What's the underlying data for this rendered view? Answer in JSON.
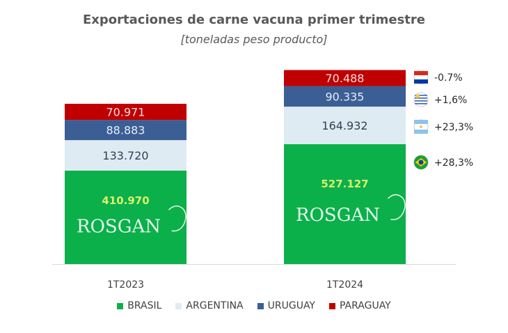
{
  "chart_data": {
    "type": "bar",
    "stacked": true,
    "title": "Exportaciones de carne vacuna primer trimestre",
    "subtitle": "[toneladas peso producto]",
    "categories": [
      "1T2023",
      "1T2024"
    ],
    "series": [
      {
        "name": "BRASIL",
        "color": "#0bb04b",
        "label_color": "#d9f26b",
        "values": [
          410970,
          527127
        ],
        "labels": [
          "410.970",
          "527.127"
        ],
        "change": "+28,3%",
        "flag": "brazil-flag-icon"
      },
      {
        "name": "ARGENTINA",
        "color": "#deebf3",
        "label_color": "#333f50",
        "values": [
          133720,
          164932
        ],
        "labels": [
          "133.720",
          "164.932"
        ],
        "change": "+23,3%",
        "flag": "argentina-flag-icon"
      },
      {
        "name": "URUGUAY",
        "color": "#3b5e95",
        "label_color": "#e6eef7",
        "values": [
          88883,
          90335
        ],
        "labels": [
          "88.883",
          "90.335"
        ],
        "change": "+1,6%",
        "flag": "uruguay-flag-icon"
      },
      {
        "name": "PARAGUAY",
        "color": "#c00000",
        "label_color": "#f8e0e0",
        "values": [
          70971,
          70488
        ],
        "labels": [
          "70.971",
          "70.488"
        ],
        "change": "-0.7%",
        "flag": "paraguay-flag-icon"
      }
    ],
    "legend_position": "bottom",
    "grid": false,
    "watermark": "ROSGAN"
  }
}
